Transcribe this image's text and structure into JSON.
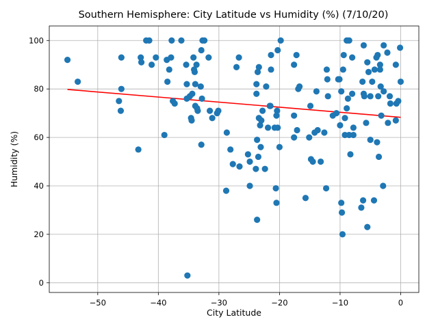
{
  "chart_data": {
    "type": "scatter",
    "title": "Southern Hemisphere: City Latitude vs Humidity (%) (7/10/20)",
    "xlabel": "City Latitude",
    "ylabel": "Humidity (%)",
    "xlim": [
      -58,
      3
    ],
    "ylim": [
      -4,
      106
    ],
    "xticks": [
      -50,
      -40,
      -30,
      -20,
      -10,
      0
    ],
    "yticks": [
      0,
      20,
      40,
      60,
      80,
      100
    ],
    "grid": true,
    "colors": {
      "points": "#1f77b4",
      "regression": "#ff0000"
    },
    "regression_line": {
      "x": [
        -55,
        0
      ],
      "y": [
        79.8,
        68.3
      ]
    },
    "points": [
      [
        -55,
        92
      ],
      [
        -53.3,
        83
      ],
      [
        -46.5,
        75
      ],
      [
        -46.2,
        71
      ],
      [
        -46.1,
        80
      ],
      [
        -46.1,
        93
      ],
      [
        -43.3,
        55
      ],
      [
        -42.9,
        93
      ],
      [
        -42.8,
        91
      ],
      [
        -42,
        100
      ],
      [
        -41.5,
        100
      ],
      [
        -41.1,
        90
      ],
      [
        -40.4,
        93
      ],
      [
        -39,
        61
      ],
      [
        -38.6,
        92
      ],
      [
        -38.5,
        83
      ],
      [
        -38.2,
        88
      ],
      [
        -37.9,
        93
      ],
      [
        -37.8,
        100
      ],
      [
        -37.6,
        75
      ],
      [
        -37.3,
        74
      ],
      [
        -36.2,
        100
      ],
      [
        -35.4,
        90
      ],
      [
        -35.3,
        82
      ],
      [
        -35.3,
        76
      ],
      [
        -35.2,
        3
      ],
      [
        -34.8,
        77
      ],
      [
        -34.6,
        68
      ],
      [
        -34.5,
        67
      ],
      [
        -34.4,
        78
      ],
      [
        -34.2,
        93
      ],
      [
        -34.1,
        88
      ],
      [
        -34.0,
        87
      ],
      [
        -33.9,
        82
      ],
      [
        -33.9,
        73
      ],
      [
        -33.7,
        90
      ],
      [
        -33.6,
        72
      ],
      [
        -33.5,
        71
      ],
      [
        -33.0,
        81
      ],
      [
        -32.9,
        57
      ],
      [
        -32.9,
        96
      ],
      [
        -32.8,
        76
      ],
      [
        -32.7,
        100
      ],
      [
        -32.4,
        100
      ],
      [
        -31.7,
        93
      ],
      [
        -31.5,
        71
      ],
      [
        -31.1,
        68
      ],
      [
        -30.3,
        70
      ],
      [
        -30.1,
        71
      ],
      [
        -28.8,
        38
      ],
      [
        -28.7,
        62
      ],
      [
        -28.1,
        55
      ],
      [
        -27.7,
        49
      ],
      [
        -27.1,
        89
      ],
      [
        -26.7,
        93
      ],
      [
        -26.6,
        48
      ],
      [
        -25.2,
        53
      ],
      [
        -24.9,
        40
      ],
      [
        -24.9,
        50
      ],
      [
        -23.9,
        47
      ],
      [
        -23.8,
        82
      ],
      [
        -23.8,
        78
      ],
      [
        -23.7,
        59
      ],
      [
        -23.7,
        26
      ],
      [
        -23.6,
        87
      ],
      [
        -23.5,
        52
      ],
      [
        -23.4,
        89
      ],
      [
        -23.4,
        68
      ],
      [
        -23.2,
        65
      ],
      [
        -23.1,
        56
      ],
      [
        -23.0,
        67
      ],
      [
        -22.8,
        71
      ],
      [
        -22.4,
        47
      ],
      [
        -22.2,
        81
      ],
      [
        -21.9,
        64
      ],
      [
        -21.6,
        73
      ],
      [
        -21.5,
        73
      ],
      [
        -21.4,
        94
      ],
      [
        -21.4,
        88
      ],
      [
        -20.8,
        64
      ],
      [
        -20.6,
        39
      ],
      [
        -20.5,
        33
      ],
      [
        -20.5,
        69
      ],
      [
        -20.4,
        71
      ],
      [
        -20.3,
        96
      ],
      [
        -20.3,
        64
      ],
      [
        -20.0,
        56
      ],
      [
        -19.8,
        100
      ],
      [
        -17.6,
        90
      ],
      [
        -17.6,
        69
      ],
      [
        -17.6,
        60
      ],
      [
        -17.2,
        94
      ],
      [
        -17.1,
        63
      ],
      [
        -16.9,
        80
      ],
      [
        -16.7,
        81
      ],
      [
        -15.7,
        35
      ],
      [
        -15.1,
        60
      ],
      [
        -14.9,
        73
      ],
      [
        -14.8,
        51
      ],
      [
        -14.5,
        50
      ],
      [
        -14.2,
        62
      ],
      [
        -13.9,
        79
      ],
      [
        -13.7,
        63
      ],
      [
        -13.2,
        50
      ],
      [
        -12.6,
        62
      ],
      [
        -12.3,
        39
      ],
      [
        -12.2,
        88
      ],
      [
        -12.1,
        84
      ],
      [
        -12.0,
        77
      ],
      [
        -11.2,
        69
      ],
      [
        -10.6,
        70
      ],
      [
        -10.3,
        84
      ],
      [
        -10.1,
        84
      ],
      [
        -10.0,
        65
      ],
      [
        -9.8,
        33
      ],
      [
        -9.8,
        79
      ],
      [
        -9.7,
        29
      ],
      [
        -9.6,
        20
      ],
      [
        -9.5,
        88
      ],
      [
        -9.4,
        94
      ],
      [
        -9.2,
        68
      ],
      [
        -9.2,
        61
      ],
      [
        -8.9,
        72
      ],
      [
        -8.9,
        100
      ],
      [
        -8.7,
        76
      ],
      [
        -8.5,
        100
      ],
      [
        -8.5,
        61
      ],
      [
        -8.3,
        53
      ],
      [
        -8.0,
        78
      ],
      [
        -8.0,
        93
      ],
      [
        -7.8,
        64
      ],
      [
        -7.8,
        61
      ],
      [
        -6.5,
        31
      ],
      [
        -6.3,
        83
      ],
      [
        -6.2,
        34
      ],
      [
        -6.1,
        98
      ],
      [
        -6.1,
        78
      ],
      [
        -6.0,
        77
      ],
      [
        -5.7,
        66
      ],
      [
        -5.5,
        23
      ],
      [
        -5.5,
        91
      ],
      [
        -5.3,
        87
      ],
      [
        -5.0,
        59
      ],
      [
        -5.0,
        77
      ],
      [
        -4.7,
        83
      ],
      [
        -4.4,
        34
      ],
      [
        -4.3,
        88
      ],
      [
        -4.0,
        93
      ],
      [
        -3.9,
        58
      ],
      [
        -3.8,
        94
      ],
      [
        -3.7,
        77
      ],
      [
        -3.6,
        52
      ],
      [
        -3.4,
        90
      ],
      [
        -3.4,
        88
      ],
      [
        -3.3,
        81
      ],
      [
        -3.2,
        69
      ],
      [
        -2.9,
        40
      ],
      [
        -2.8,
        79
      ],
      [
        -2.8,
        98
      ],
      [
        -2.2,
        95
      ],
      [
        -2.1,
        66
      ],
      [
        -1.8,
        77
      ],
      [
        -1.7,
        74
      ],
      [
        -0.8,
        67
      ],
      [
        -0.8,
        90
      ],
      [
        -0.7,
        74
      ],
      [
        -0.4,
        75
      ],
      [
        -0.1,
        97
      ],
      [
        0,
        83
      ]
    ]
  }
}
